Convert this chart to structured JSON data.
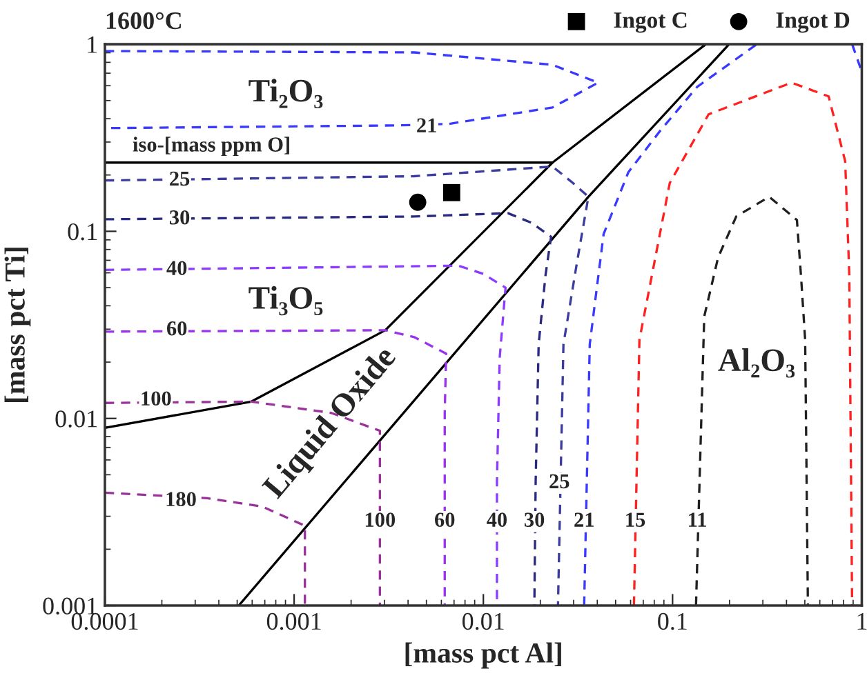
{
  "chart_data": {
    "type": "line",
    "title": "1600°C",
    "xlabel": "[mass pct Al]",
    "ylabel": "[mass pct Ti]",
    "log": "xy",
    "xlim": [
      0.0001,
      1
    ],
    "ylim": [
      0.001,
      1
    ],
    "xticks": [
      0.0001,
      0.001,
      0.01,
      0.1,
      1
    ],
    "yticks": [
      0.001,
      0.01,
      0.1,
      1
    ],
    "legend": "top right",
    "series": [
      {
        "type": "line",
        "color": "#000000",
        "line_style": "solid",
        "x": [
          0.0001,
          0.0232
        ],
        "values": [
          0.233,
          0.233
        ]
      },
      {
        "type": "line",
        "color": "#000000",
        "line_style": "solid",
        "x": [
          0.0001,
          0.000594,
          0.00303,
          0.0232,
          0.15
        ],
        "values": [
          0.0089,
          0.0123,
          0.0296,
          0.233,
          1
        ]
      },
      {
        "type": "line",
        "color": "#000000",
        "line_style": "solid",
        "x": [
          0.00051,
          0.0359,
          0.199
        ],
        "values": [
          0.001,
          0.153,
          1
        ]
      },
      {
        "type": "line",
        "color": "#3a3aff",
        "line_style": "dashed",
        "x": [
          0.0001,
          0.00431,
          0.0232,
          0.0404,
          0.0232,
          0.00657,
          0.00347,
          0.0001,
          null,
          0.0341,
          0.0365,
          0.0432,
          0.0584,
          0.0859,
          0.135,
          0.279,
          null,
          0.889,
          1
        ],
        "values": [
          0.919,
          0.904,
          0.776,
          0.623,
          0.459,
          0.375,
          0.368,
          0.356,
          null,
          0.001,
          0.0249,
          0.0966,
          0.207,
          0.344,
          0.592,
          1,
          null,
          1,
          0.713
        ]
      },
      {
        "type": "line",
        "color": "#3c3ca0",
        "line_style": "dashed",
        "x": [
          0.0001,
          0.00431,
          0.0232,
          0.0298,
          0.0359,
          0.0313,
          0.0265,
          0.0248
        ],
        "values": [
          0.187,
          0.197,
          0.222,
          0.181,
          0.153,
          0.0689,
          0.0249,
          0.001
        ]
      },
      {
        "type": "line",
        "color": "#2a2a80",
        "line_style": "dashed",
        "x": [
          0.0001,
          0.00431,
          0.0135,
          0.018,
          0.0228,
          0.0213,
          0.0196,
          0.0189,
          0.0186
        ],
        "values": [
          0.116,
          0.12,
          0.125,
          0.111,
          0.0935,
          0.0582,
          0.0249,
          0.00459,
          0.001
        ]
      },
      {
        "type": "line",
        "color": "#8c3cff",
        "line_style": "dashed",
        "x": [
          0.0001,
          0.0074,
          0.01,
          0.0131,
          0.0122,
          0.0118,
          0.0118
        ],
        "values": [
          0.0622,
          0.0655,
          0.0592,
          0.05,
          0.0211,
          0.00459,
          0.001
        ]
      },
      {
        "type": "line",
        "color": "#9933ee",
        "line_style": "dashed",
        "x": [
          0.0001,
          0.00303,
          0.00431,
          0.00636,
          0.00625,
          0.00625
        ],
        "values": [
          0.0291,
          0.0296,
          0.0272,
          0.0222,
          0.0107,
          0.001
        ]
      },
      {
        "type": "line",
        "color": "#993399",
        "line_style": "dashed",
        "x": [
          0.0001,
          0.000594,
          0.00157,
          0.00284,
          0.00284
        ],
        "values": [
          0.0121,
          0.0123,
          0.0107,
          0.00859,
          0.001
        ]
      },
      {
        "type": "line",
        "color": "#993399",
        "line_style": "dashed",
        "x": [
          0.0001,
          0.000347,
          0.000679,
          0.00114,
          0.00114
        ],
        "values": [
          0.00401,
          0.00375,
          0.00338,
          0.00267,
          0.001
        ]
      },
      {
        "type": "line",
        "color": "#ff2020",
        "line_style": "dashed",
        "x": [
          0.0625,
          0.0668,
          0.0966,
          0.155,
          0.425,
          0.668,
          0.817,
          0.859,
          0.889
        ],
        "values": [
          0.001,
          0.0263,
          0.181,
          0.422,
          0.623,
          0.526,
          0.237,
          0.0582,
          0.001
        ]
      },
      {
        "type": "line",
        "color": "#202020",
        "line_style": "dashed",
        "x": [
          0.133,
          0.147,
          0.174,
          0.217,
          0.324,
          0.454,
          0.477,
          0.502,
          0.519
        ],
        "values": [
          0.001,
          0.035,
          0.0725,
          0.12,
          0.153,
          0.115,
          0.0582,
          0.0263,
          0.001
        ]
      },
      {
        "type": "scatter",
        "name": "Ingot C",
        "color": "#000000",
        "marker": "square",
        "x": [
          0.0068
        ],
        "values": [
          0.161
        ]
      },
      {
        "type": "scatter",
        "name": "Ingot D",
        "color": "#000000",
        "marker": "circle",
        "x": [
          0.0045
        ],
        "values": [
          0.143
        ]
      }
    ],
    "annotations": [
      "Ti₂O₃",
      "Ti₃O₅",
      "Liquid Oxide",
      "Al₂O₃",
      "iso-[mass ppm O]",
      {
        "text": "21",
        "x": 0.00502,
        "y": 0.36
      },
      {
        "text": "25",
        "x": 0.000248,
        "y": 0.187
      },
      {
        "text": "30",
        "x": 0.000248,
        "y": 0.116
      },
      {
        "text": "40",
        "x": 0.00024,
        "y": 0.0622
      },
      {
        "text": "60",
        "x": 0.00024,
        "y": 0.0296
      },
      {
        "text": "100",
        "x": 0.000186,
        "y": 0.0125
      },
      {
        "text": "180",
        "x": 0.000252,
        "y": 0.00362
      },
      {
        "text": "100",
        "x": 0.00284,
        "y": 0.00281
      },
      {
        "text": "60",
        "x": 0.00625,
        "y": 0.00281
      },
      {
        "text": "40",
        "x": 0.0118,
        "y": 0.00281
      },
      {
        "text": "30",
        "x": 0.0186,
        "y": 0.00281
      },
      {
        "text": "25",
        "x": 0.0252,
        "y": 0.00451
      },
      {
        "text": "21",
        "x": 0.0341,
        "y": 0.00281
      },
      {
        "text": "15",
        "x": 0.0634,
        "y": 0.00281
      },
      {
        "text": "11",
        "x": 0.135,
        "y": 0.00281
      }
    ]
  }
}
